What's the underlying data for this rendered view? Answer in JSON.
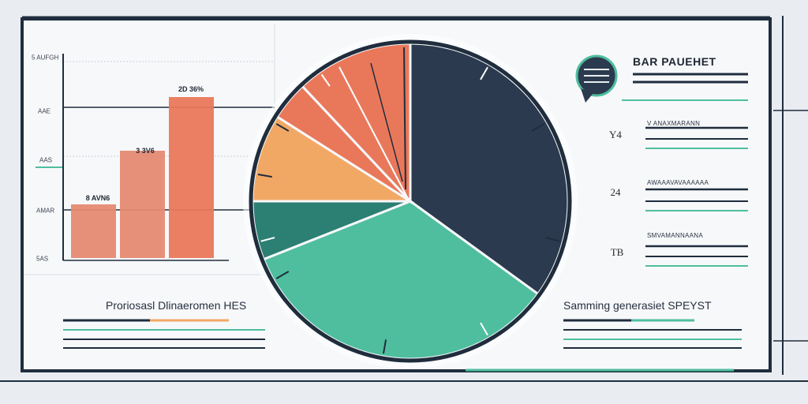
{
  "colors": {
    "navy": "#2b3a4e",
    "coral": "#e9785b",
    "coral_light": "#e58a73",
    "orange": "#f2a865",
    "teal": "#4fbe9e",
    "teal_dark": "#2c7f73",
    "yellow": "#f5b26b",
    "frame": "#1f2d3d"
  },
  "chart_data": [
    {
      "type": "bar",
      "categories": [
        "",
        "",
        ""
      ],
      "values": [
        1,
        2,
        3
      ],
      "value_labels": [
        "8 AVN6",
        "3 3V6",
        "2D 36%"
      ],
      "yticks": [
        "5 AUFGH",
        "AAE",
        "AAS",
        "AMAR",
        "5AS"
      ]
    },
    {
      "type": "pie",
      "values": [
        35,
        34,
        6,
        9,
        4,
        12
      ],
      "colors": [
        "#2b3a4e",
        "#4fbe9e",
        "#2c7f73",
        "#f2a865",
        "#e9785b",
        "#e9785b"
      ]
    }
  ],
  "legend": {
    "title": "BAR PAUEHET",
    "items": [
      {
        "badge": "Y4",
        "color": "#f5b26b",
        "label": "V ANAXMARANN"
      },
      {
        "badge": "24",
        "color": "#e9785b",
        "label": "AWAAAVAVAAAAAA"
      },
      {
        "badge": "TB",
        "color": "#4fbe9e",
        "label": "SMVAMANNAANA"
      }
    ]
  },
  "captions": {
    "left": "Proriosasl Dlinaeromen HES",
    "right": "Samming generasiet SPEYST"
  }
}
